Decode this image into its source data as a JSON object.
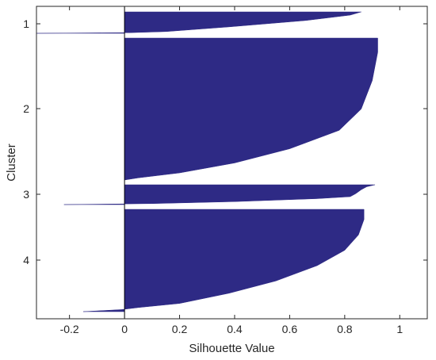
{
  "chart_data": {
    "type": "bar",
    "orientation": "horizontal",
    "subtype": "silhouette",
    "title": "",
    "xlabel": "Silhouette Value",
    "ylabel": "Cluster",
    "xlim": [
      -0.32,
      1.1
    ],
    "xticks": [
      -0.2,
      0,
      0.2,
      0.4,
      0.6,
      0.8,
      1
    ],
    "xtick_labels": [
      "-0.2",
      "0",
      "0.2",
      "0.4",
      "0.6",
      "0.8",
      "1"
    ],
    "yticks": [
      "1",
      "2",
      "3",
      "4"
    ],
    "bar_color": "#2e2a85",
    "grid": false,
    "clusters": [
      {
        "label": "1",
        "profile": [
          [
            0,
            0.86
          ],
          [
            0.15,
            0.82
          ],
          [
            0.4,
            0.66
          ],
          [
            0.7,
            0.38
          ],
          [
            0.92,
            0.15
          ],
          [
            0.97,
            0.02
          ],
          [
            1,
            -0.32
          ]
        ]
      },
      {
        "label": "2",
        "profile": [
          [
            0,
            0.92
          ],
          [
            0.1,
            0.92
          ],
          [
            0.3,
            0.9
          ],
          [
            0.5,
            0.86
          ],
          [
            0.65,
            0.78
          ],
          [
            0.78,
            0.6
          ],
          [
            0.88,
            0.4
          ],
          [
            0.95,
            0.2
          ],
          [
            0.985,
            0.05
          ],
          [
            1,
            0.0
          ]
        ]
      },
      {
        "label": "3",
        "profile": [
          [
            0,
            0.91
          ],
          [
            0.1,
            0.88
          ],
          [
            0.25,
            0.86
          ],
          [
            0.45,
            0.84
          ],
          [
            0.6,
            0.82
          ],
          [
            0.7,
            0.7
          ],
          [
            0.85,
            0.4
          ],
          [
            0.95,
            0.1
          ],
          [
            1,
            -0.22
          ]
        ]
      },
      {
        "label": "4",
        "profile": [
          [
            0,
            0.87
          ],
          [
            0.1,
            0.87
          ],
          [
            0.25,
            0.85
          ],
          [
            0.4,
            0.8
          ],
          [
            0.55,
            0.7
          ],
          [
            0.7,
            0.55
          ],
          [
            0.82,
            0.38
          ],
          [
            0.92,
            0.2
          ],
          [
            0.96,
            0.05
          ],
          [
            0.98,
            -0.01
          ],
          [
            1,
            -0.15
          ]
        ]
      }
    ]
  }
}
